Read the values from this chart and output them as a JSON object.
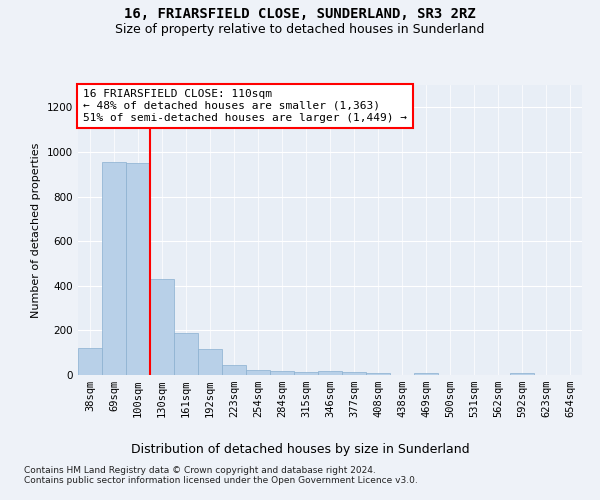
{
  "title": "16, FRIARSFIELD CLOSE, SUNDERLAND, SR3 2RZ",
  "subtitle": "Size of property relative to detached houses in Sunderland",
  "xlabel": "Distribution of detached houses by size in Sunderland",
  "ylabel": "Number of detached properties",
  "categories": [
    "38sqm",
    "69sqm",
    "100sqm",
    "130sqm",
    "161sqm",
    "192sqm",
    "223sqm",
    "254sqm",
    "284sqm",
    "315sqm",
    "346sqm",
    "377sqm",
    "408sqm",
    "438sqm",
    "469sqm",
    "500sqm",
    "531sqm",
    "562sqm",
    "592sqm",
    "623sqm",
    "654sqm"
  ],
  "values": [
    120,
    955,
    950,
    430,
    190,
    115,
    45,
    22,
    20,
    12,
    20,
    12,
    10,
    0,
    10,
    0,
    0,
    0,
    10,
    0,
    0
  ],
  "bar_color": "#b8d0e8",
  "bar_edge_color": "#8ab0d0",
  "vline_x_index": 2,
  "vline_color": "red",
  "annotation_text": "16 FRIARSFIELD CLOSE: 110sqm\n← 48% of detached houses are smaller (1,363)\n51% of semi-detached houses are larger (1,449) →",
  "annotation_box_color": "white",
  "annotation_box_edge_color": "red",
  "ylim": [
    0,
    1300
  ],
  "yticks": [
    0,
    200,
    400,
    600,
    800,
    1000,
    1200
  ],
  "footer": "Contains HM Land Registry data © Crown copyright and database right 2024.\nContains public sector information licensed under the Open Government Licence v3.0.",
  "bg_color": "#eef2f8",
  "plot_bg_color": "#e8eef6",
  "grid_color": "#ffffff",
  "title_fontsize": 10,
  "subtitle_fontsize": 9,
  "xlabel_fontsize": 9,
  "ylabel_fontsize": 8,
  "tick_fontsize": 7.5,
  "annotation_fontsize": 8,
  "footer_fontsize": 6.5
}
